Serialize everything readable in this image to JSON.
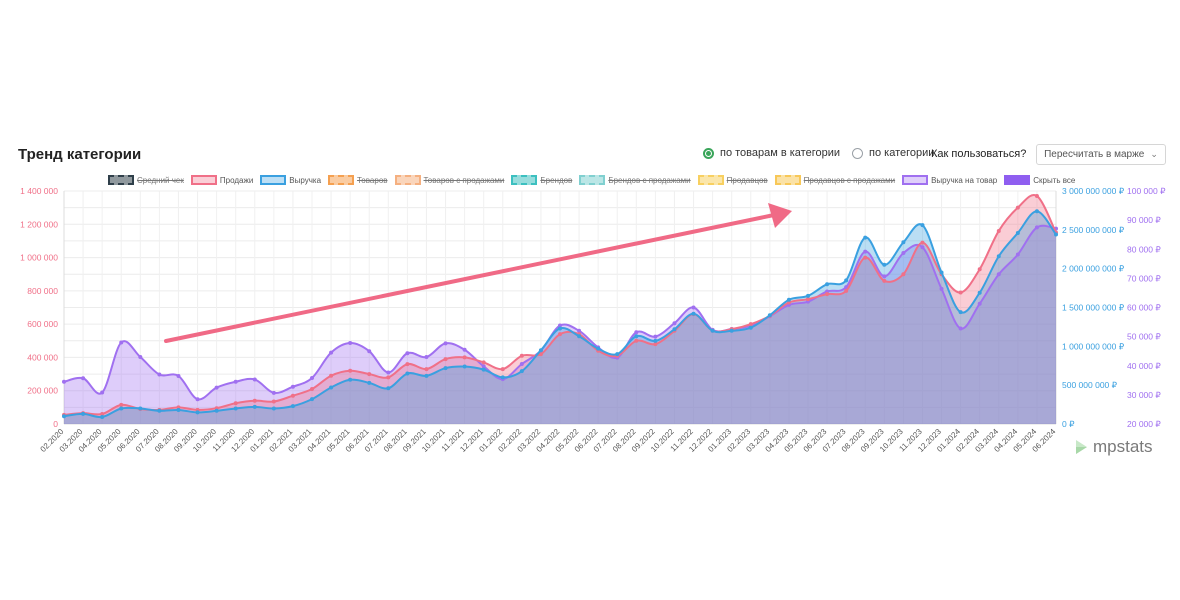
{
  "header": {
    "title": "Тренд категории",
    "radio_by_products": "по товарам в категории",
    "radio_by_category": "по категории",
    "howto": "Как пользоваться?",
    "recalc": "Пересчитать в марже"
  },
  "legend": [
    {
      "label": "Средний чек",
      "color": "#2f3f4a",
      "active": false
    },
    {
      "label": "Продажи",
      "color": "#f07088",
      "active": true
    },
    {
      "label": "Выручка",
      "color": "#3aa0e0",
      "active": true
    },
    {
      "label": "Товаров",
      "color": "#f5a050",
      "active": false
    },
    {
      "label": "Товаров с продажами",
      "color": "#f5b080",
      "active": false
    },
    {
      "label": "Брендов",
      "color": "#3cc0c0",
      "active": false
    },
    {
      "label": "Брендов с продажами",
      "color": "#80d0d0",
      "active": false
    },
    {
      "label": "Продавцов",
      "color": "#f8d060",
      "active": false
    },
    {
      "label": "Продавцов с продажами",
      "color": "#f8c858",
      "active": false
    },
    {
      "label": "Выручка на товар",
      "color": "#a070f0",
      "active": true
    },
    {
      "label": "Скрыть все",
      "color": "#8f5ef0",
      "active": true
    }
  ],
  "logo": {
    "text": "mpstats"
  },
  "chart_data": {
    "type": "area",
    "categories": [
      "02.2020",
      "03.2020",
      "04.2020",
      "05.2020",
      "06.2020",
      "07.2020",
      "08.2020",
      "09.2020",
      "10.2020",
      "11.2020",
      "12.2020",
      "01.2021",
      "02.2021",
      "03.2021",
      "04.2021",
      "05.2021",
      "06.2021",
      "07.2021",
      "08.2021",
      "09.2021",
      "10.2021",
      "11.2021",
      "12.2021",
      "01.2022",
      "02.2022",
      "03.2022",
      "04.2022",
      "05.2022",
      "06.2022",
      "07.2022",
      "08.2022",
      "09.2022",
      "10.2022",
      "11.2022",
      "12.2022",
      "01.2023",
      "02.2023",
      "03.2023",
      "04.2023",
      "05.2023",
      "06.2023",
      "07.2023",
      "08.2023",
      "09.2023",
      "10.2023",
      "11.2023",
      "12.2023",
      "01.2024",
      "02.2024",
      "03.2024",
      "04.2024",
      "05.2024",
      "06.2024"
    ],
    "axis_left": {
      "ticks": [
        "0",
        "200 000",
        "400 000",
        "600 000",
        "800 000",
        "1 000 000",
        "1 200 000",
        "1 400 000"
      ],
      "min": 0,
      "max": 1400000,
      "color": "#f07088"
    },
    "axis_right1": {
      "ticks": [
        "0 ₽",
        "500 000 000 ₽",
        "1 000 000 000 ₽",
        "1 500 000 000 ₽",
        "2 000 000 000 ₽",
        "2 500 000 000 ₽",
        "3 000 000 000 ₽"
      ],
      "min": 0,
      "max": 3000000000,
      "color": "#3aa0e0"
    },
    "axis_right2": {
      "ticks": [
        "20 000 ₽",
        "30 000 ₽",
        "40 000 ₽",
        "50 000 ₽",
        "60 000 ₽",
        "70 000 ₽",
        "80 000 ₽",
        "90 000 ₽",
        "100 000 ₽"
      ],
      "min": 20000,
      "max": 100000,
      "color": "#a070f0"
    },
    "grid": true,
    "series": [
      {
        "name": "Продажи",
        "color": "#f07088",
        "axis": "left",
        "values": [
          55000,
          65000,
          60000,
          115000,
          90000,
          85000,
          100000,
          85000,
          95000,
          125000,
          140000,
          135000,
          170000,
          210000,
          290000,
          320000,
          300000,
          280000,
          360000,
          330000,
          390000,
          400000,
          370000,
          330000,
          410000,
          420000,
          540000,
          540000,
          440000,
          410000,
          500000,
          480000,
          560000,
          660000,
          560000,
          570000,
          600000,
          650000,
          730000,
          750000,
          780000,
          800000,
          1000000,
          860000,
          900000,
          1090000,
          900000,
          790000,
          930000,
          1160000,
          1300000,
          1370000,
          1150000
        ]
      },
      {
        "name": "Выручка",
        "color": "#3aa0e0",
        "axis": "right1",
        "values": [
          100000000,
          130000000,
          90000000,
          200000000,
          200000000,
          170000000,
          180000000,
          150000000,
          170000000,
          200000000,
          220000000,
          200000000,
          230000000,
          320000000,
          470000000,
          570000000,
          530000000,
          460000000,
          650000000,
          620000000,
          720000000,
          740000000,
          700000000,
          600000000,
          680000000,
          950000000,
          1230000000,
          1130000000,
          970000000,
          900000000,
          1130000000,
          1070000000,
          1220000000,
          1420000000,
          1200000000,
          1200000000,
          1240000000,
          1400000000,
          1600000000,
          1650000000,
          1800000000,
          1850000000,
          2400000000,
          2050000000,
          2340000000,
          2560000000,
          1950000000,
          1440000000,
          1690000000,
          2160000000,
          2460000000,
          2740000000,
          2440000000
        ]
      },
      {
        "name": "Выручка на товар",
        "color": "#a070f0",
        "axis": "right2",
        "values": [
          34500,
          35700,
          30800,
          48000,
          43000,
          37000,
          36500,
          28500,
          32500,
          34500,
          35300,
          30700,
          32800,
          35800,
          44500,
          47800,
          45000,
          37700,
          44300,
          43000,
          47700,
          45500,
          39800,
          35400,
          40600,
          45200,
          53800,
          52000,
          46300,
          42800,
          51500,
          50000,
          54600,
          60000,
          52300,
          52600,
          53700,
          57000,
          60900,
          62000,
          65500,
          67000,
          79200,
          70700,
          78700,
          80700,
          66400,
          52800,
          61300,
          71400,
          78200,
          87500,
          87100
        ]
      }
    ]
  }
}
